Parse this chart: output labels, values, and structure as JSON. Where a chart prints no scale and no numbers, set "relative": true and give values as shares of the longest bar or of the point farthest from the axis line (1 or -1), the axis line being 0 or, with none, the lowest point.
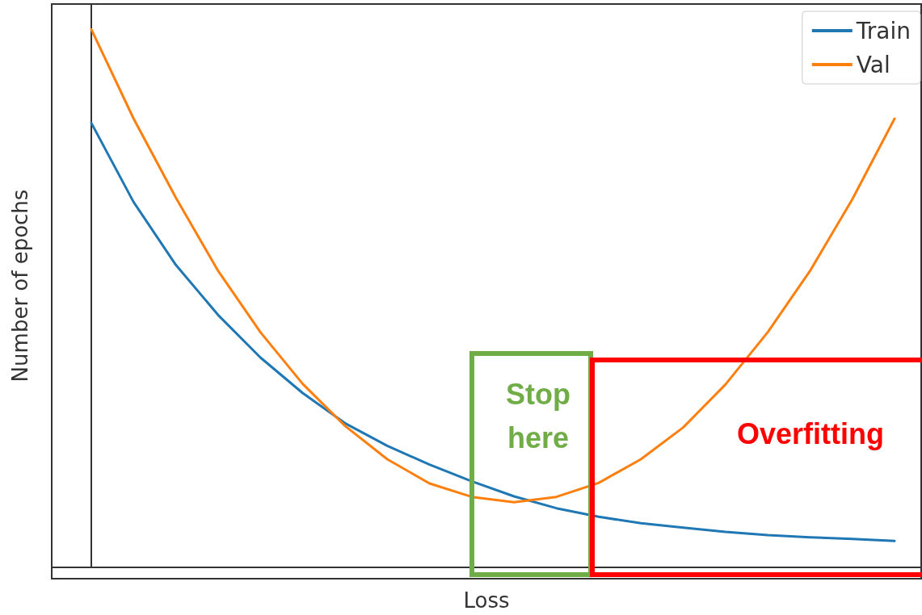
{
  "chart_data": {
    "type": "line",
    "relative": true,
    "xlabel": "Loss",
    "ylabel": "Number of epochs",
    "categories": [
      null,
      null,
      null,
      null,
      null,
      null,
      null,
      null,
      null,
      null,
      null,
      null,
      null,
      null,
      null,
      null,
      null,
      null,
      null,
      null
    ],
    "series": [
      {
        "name": "Train",
        "color": "#1f77b4",
        "values": [
          0.826,
          0.679,
          0.562,
          0.469,
          0.39,
          0.324,
          0.268,
          0.226,
          0.191,
          0.16,
          0.132,
          0.11,
          0.094,
          0.082,
          0.074,
          0.066,
          0.06,
          0.056,
          0.053,
          0.049
        ]
      },
      {
        "name": "Val",
        "color": "#ff7f0e",
        "values": [
          1,
          0.834,
          0.687,
          0.551,
          0.437,
          0.341,
          0.263,
          0.201,
          0.156,
          0.131,
          0.121,
          0.131,
          0.157,
          0.201,
          0.26,
          0.34,
          0.437,
          0.551,
          0.684,
          0.834
        ]
      }
    ],
    "annotations": [
      "Stop here",
      "Overfitting"
    ],
    "legend": "top right",
    "grid": false,
    "marker": "none",
    "line_style": "solid"
  }
}
